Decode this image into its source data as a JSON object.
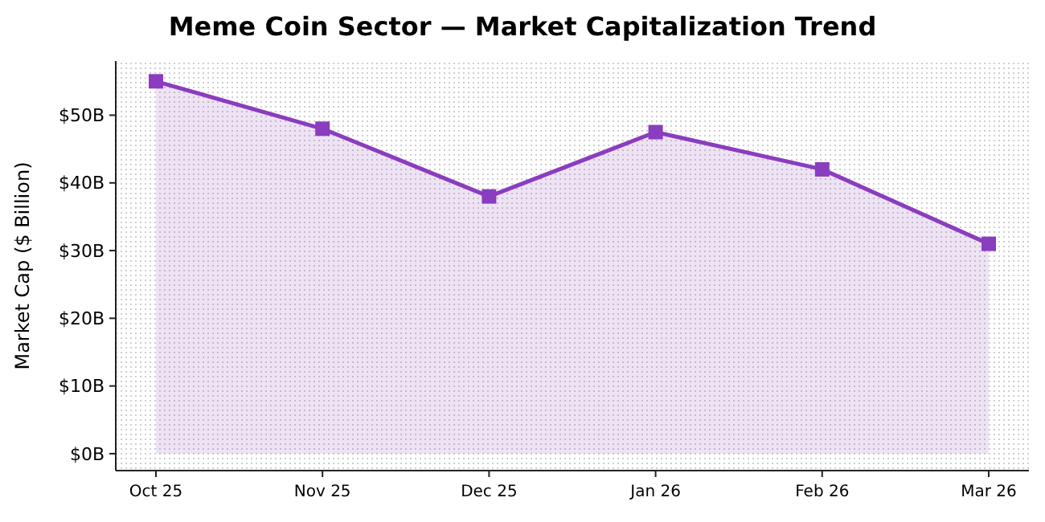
{
  "chart_data": {
    "type": "area",
    "title": "Meme Coin Sector — Market Capitalization Trend",
    "ylabel": "Market Cap ($ Billion)",
    "categories": [
      "Oct 25",
      "Nov 25",
      "Dec 25",
      "Jan 26",
      "Feb 26",
      "Mar 26"
    ],
    "series": [
      {
        "color": "#8a3dbf",
        "values": [
          55,
          48,
          38,
          47.5,
          42,
          31
        ]
      }
    ],
    "ylim": [
      -2.5,
      58
    ],
    "yticks": [
      {
        "value": 0,
        "label": "$0B"
      },
      {
        "value": 10,
        "label": "$10B"
      },
      {
        "value": 20,
        "label": "$20B"
      },
      {
        "value": 30,
        "label": "$30B"
      },
      {
        "value": 40,
        "label": "$40B"
      },
      {
        "value": 50,
        "label": "$50B"
      }
    ],
    "marker": "square",
    "line_style": "solid"
  }
}
